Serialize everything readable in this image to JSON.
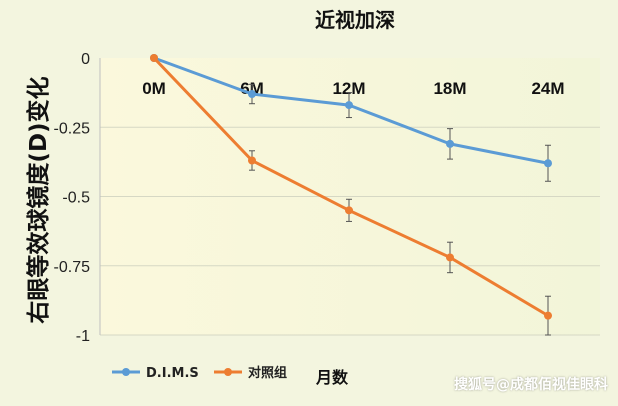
{
  "chart_data": {
    "type": "line",
    "title": "近视加深",
    "ylabel": "右眼等效球镜度(D)变化",
    "xlabel": "月数",
    "categories": [
      "0M",
      "6M",
      "12M",
      "18M",
      "24M"
    ],
    "ylim": [
      -1,
      0
    ],
    "yticks": [
      0,
      -0.25,
      -0.5,
      -0.75,
      -1
    ],
    "ytick_labels": [
      "0",
      "-0.25",
      "-0.5",
      "-0.75",
      "-1"
    ],
    "grid": true,
    "legend_position": "bottom-left",
    "series": [
      {
        "name": "D.I.M.S",
        "color": "#5b9bd5",
        "values": [
          0,
          -0.13,
          -0.17,
          -0.31,
          -0.38
        ],
        "errors": [
          0,
          0.035,
          0.045,
          0.055,
          0.065
        ]
      },
      {
        "name": "对照组",
        "color": "#ed7d31",
        "values": [
          0,
          -0.37,
          -0.55,
          -0.72,
          -0.93
        ],
        "errors": [
          0,
          0.035,
          0.04,
          0.055,
          0.07
        ]
      }
    ]
  },
  "watermark": "搜狐号@成都佰视佳眼科"
}
